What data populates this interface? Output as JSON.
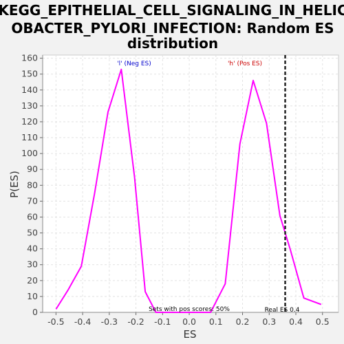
{
  "chart_data": {
    "type": "line",
    "title_lines": [
      "KEGG_EPITHELIAL_CELL_SIGNALING_IN_HELIC",
      "OBACTER_PYLORI_INFECTION: Random ES",
      "distribution"
    ],
    "xlabel": "ES",
    "ylabel": "P(ES)",
    "xlim": [
      -0.55,
      0.56
    ],
    "ylim": [
      0,
      162
    ],
    "x_ticks": [
      -0.5,
      -0.4,
      -0.3,
      -0.2,
      -0.1,
      0.0,
      0.1,
      0.2,
      0.3,
      0.4,
      0.5
    ],
    "x_tick_labels": [
      "-0.5",
      "-0.4",
      "-0.3",
      "-0.2",
      "-0.1",
      "0.0",
      "0.1",
      "0.2",
      "0.3",
      "0.4",
      "0.5"
    ],
    "y_ticks": [
      0,
      10,
      20,
      30,
      40,
      50,
      60,
      70,
      80,
      90,
      100,
      110,
      120,
      130,
      140,
      150,
      160
    ],
    "grid": true,
    "series": [
      {
        "color": "#ff00ff",
        "x": [
          -0.5,
          -0.455,
          -0.405,
          -0.355,
          -0.305,
          -0.255,
          -0.205,
          -0.165,
          -0.125,
          -0.085,
          -0.04,
          0.005,
          0.08,
          0.135,
          0.19,
          0.24,
          0.29,
          0.34,
          0.38,
          0.43,
          0.495
        ],
        "y": [
          2,
          14,
          29,
          75,
          126,
          153,
          85,
          13,
          0,
          0,
          0,
          0,
          0,
          18,
          106,
          146,
          119,
          61,
          39,
          9,
          5
        ]
      }
    ],
    "real_es": 0.36,
    "annotations": {
      "neg_label": "'l' (Neg ES)",
      "pos_label": "'h' (Pos ES)",
      "sets_label": "Sets with pos scores: 50%",
      "real_es_label": "Real ES 0.4",
      "neg_color": "#0000cc",
      "pos_color": "#cc0000"
    }
  }
}
